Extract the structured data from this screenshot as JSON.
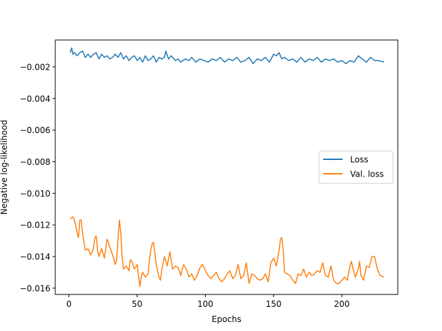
{
  "chart_data": {
    "type": "line",
    "title": "",
    "xlabel": "Epochs",
    "ylabel": "Negative log-likelihood",
    "xlim": [
      -10,
      241
    ],
    "ylim": [
      -0.0164,
      -0.0003
    ],
    "xticks": [
      0,
      50,
      100,
      150,
      200
    ],
    "xtick_labels": [
      "0",
      "50",
      "100",
      "150",
      "200"
    ],
    "yticks": [
      -0.002,
      -0.004,
      -0.006,
      -0.008,
      -0.01,
      -0.012,
      -0.014,
      -0.016
    ],
    "ytick_labels": [
      "−0.002",
      "−0.004",
      "−0.006",
      "−0.008",
      "−0.010",
      "−0.012",
      "−0.014",
      "−0.016"
    ],
    "grid": false,
    "legend_position": "center-right",
    "series": [
      {
        "name": "Loss",
        "color": "#1f77b4",
        "x": [
          1,
          2,
          3,
          4,
          5,
          6,
          8,
          10,
          12,
          14,
          16,
          18,
          20,
          22,
          24,
          26,
          28,
          30,
          32,
          34,
          36,
          38,
          40,
          42,
          44,
          46,
          48,
          50,
          52,
          54,
          56,
          58,
          60,
          62,
          64,
          66,
          68,
          70,
          71,
          73,
          75,
          78,
          80,
          82,
          85,
          88,
          90,
          93,
          96,
          99,
          102,
          105,
          108,
          111,
          114,
          117,
          120,
          123,
          126,
          129,
          132,
          135,
          138,
          141,
          144,
          147,
          150,
          152,
          154,
          156,
          158,
          161,
          164,
          167,
          170,
          173,
          176,
          179,
          182,
          185,
          188,
          191,
          194,
          197,
          200,
          203,
          206,
          209,
          212,
          215,
          218,
          221,
          224,
          227,
          231
        ],
        "values": [
          -0.0011,
          -0.0008,
          -0.0012,
          -0.0011,
          -0.0012,
          -0.0013,
          -0.0011,
          -0.001,
          -0.0014,
          -0.0012,
          -0.0014,
          -0.0012,
          -0.0011,
          -0.0015,
          -0.0012,
          -0.0014,
          -0.0013,
          -0.0015,
          -0.0014,
          -0.0012,
          -0.0014,
          -0.0011,
          -0.0015,
          -0.0013,
          -0.0016,
          -0.0014,
          -0.0013,
          -0.0016,
          -0.0014,
          -0.0017,
          -0.0013,
          -0.0016,
          -0.0015,
          -0.0013,
          -0.0017,
          -0.0014,
          -0.0015,
          -0.0014,
          -0.001,
          -0.0015,
          -0.0013,
          -0.0016,
          -0.0015,
          -0.0017,
          -0.0015,
          -0.0016,
          -0.0014,
          -0.0017,
          -0.0015,
          -0.0016,
          -0.0017,
          -0.0015,
          -0.0016,
          -0.0014,
          -0.0017,
          -0.0015,
          -0.0016,
          -0.0014,
          -0.0017,
          -0.0016,
          -0.0014,
          -0.0018,
          -0.0015,
          -0.0016,
          -0.0014,
          -0.0017,
          -0.0012,
          -0.0013,
          -0.0011,
          -0.0015,
          -0.0014,
          -0.0016,
          -0.0015,
          -0.0017,
          -0.0014,
          -0.0017,
          -0.0015,
          -0.0016,
          -0.0014,
          -0.0017,
          -0.0015,
          -0.0016,
          -0.0015,
          -0.0017,
          -0.0016,
          -0.0018,
          -0.0016,
          -0.0017,
          -0.0013,
          -0.0015,
          -0.0017,
          -0.0014,
          -0.0016,
          -0.0016,
          -0.0017
        ]
      },
      {
        "name": "Val. loss",
        "color": "#ff7f0e",
        "x": [
          1,
          3,
          4,
          5,
          6,
          7,
          8,
          9,
          10,
          12,
          14,
          16,
          18,
          19,
          20,
          21,
          22,
          24,
          26,
          28,
          30,
          32,
          34,
          35,
          36,
          37,
          38,
          39,
          40,
          42,
          44,
          45,
          46,
          48,
          50,
          52,
          53,
          54,
          56,
          58,
          59,
          60,
          61,
          62,
          64,
          66,
          67,
          68,
          70,
          72,
          74,
          76,
          78,
          80,
          82,
          84,
          86,
          88,
          90,
          92,
          94,
          96,
          98,
          100,
          102,
          104,
          106,
          108,
          110,
          112,
          114,
          116,
          118,
          120,
          122,
          124,
          126,
          128,
          130,
          132,
          134,
          136,
          138,
          140,
          142,
          144,
          146,
          148,
          150,
          152,
          154,
          155,
          156,
          157,
          158,
          160,
          162,
          164,
          166,
          168,
          170,
          172,
          174,
          176,
          178,
          180,
          182,
          184,
          186,
          188,
          190,
          192,
          194,
          196,
          198,
          200,
          202,
          204,
          206,
          207,
          208,
          210,
          212,
          213,
          214,
          216,
          218,
          220,
          222,
          224,
          226,
          228,
          231
        ],
        "values": [
          -0.0116,
          -0.0115,
          -0.0117,
          -0.012,
          -0.0125,
          -0.0128,
          -0.0117,
          -0.0117,
          -0.0125,
          -0.0136,
          -0.0135,
          -0.0139,
          -0.0135,
          -0.0128,
          -0.0127,
          -0.0136,
          -0.014,
          -0.0135,
          -0.0141,
          -0.0129,
          -0.0134,
          -0.0139,
          -0.0145,
          -0.0142,
          -0.0129,
          -0.0117,
          -0.0125,
          -0.014,
          -0.0148,
          -0.0146,
          -0.0149,
          -0.0142,
          -0.0143,
          -0.0148,
          -0.0145,
          -0.0159,
          -0.0153,
          -0.015,
          -0.0153,
          -0.0151,
          -0.0142,
          -0.0136,
          -0.0132,
          -0.0131,
          -0.0145,
          -0.0153,
          -0.0155,
          -0.0149,
          -0.014,
          -0.0146,
          -0.0137,
          -0.0148,
          -0.0146,
          -0.0147,
          -0.0152,
          -0.0145,
          -0.0148,
          -0.0153,
          -0.0151,
          -0.0155,
          -0.0152,
          -0.0147,
          -0.0145,
          -0.0149,
          -0.0152,
          -0.0154,
          -0.0152,
          -0.015,
          -0.0154,
          -0.0156,
          -0.0154,
          -0.0151,
          -0.0149,
          -0.0154,
          -0.0152,
          -0.0145,
          -0.0154,
          -0.0152,
          -0.0144,
          -0.0157,
          -0.0151,
          -0.0152,
          -0.0154,
          -0.0155,
          -0.0154,
          -0.0151,
          -0.0156,
          -0.0144,
          -0.0141,
          -0.0146,
          -0.0136,
          -0.0129,
          -0.0128,
          -0.0135,
          -0.015,
          -0.0151,
          -0.0152,
          -0.0155,
          -0.0157,
          -0.0151,
          -0.0152,
          -0.0148,
          -0.0153,
          -0.015,
          -0.0152,
          -0.0151,
          -0.0149,
          -0.015,
          -0.0144,
          -0.0152,
          -0.0153,
          -0.0146,
          -0.0155,
          -0.0157,
          -0.0157,
          -0.0155,
          -0.0153,
          -0.0155,
          -0.0146,
          -0.0143,
          -0.0147,
          -0.0153,
          -0.0148,
          -0.0143,
          -0.0152,
          -0.0155,
          -0.0146,
          -0.0147,
          -0.014,
          -0.014,
          -0.0148,
          -0.0152,
          -0.0153
        ]
      }
    ]
  }
}
